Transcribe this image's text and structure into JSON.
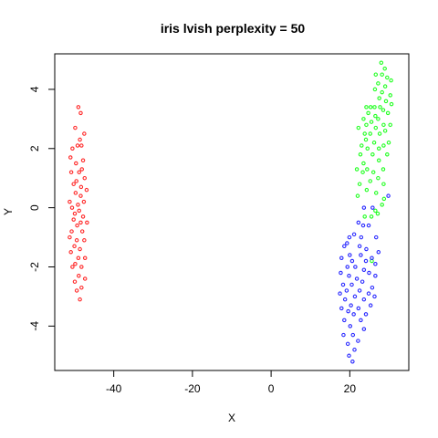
{
  "chart_data": {
    "type": "scatter",
    "title": "iris lvish perplexity = 50",
    "xlabel": "X",
    "ylabel": "Y",
    "xlim": [
      -55,
      35
    ],
    "ylim": [
      -5.5,
      5.2
    ],
    "xticks": [
      -40,
      -20,
      0,
      20
    ],
    "yticks": [
      -4,
      -2,
      0,
      2,
      4
    ],
    "grid": false,
    "series": [
      {
        "color": "#ff2a2a",
        "points": [
          [
            -49.0,
            3.4
          ],
          [
            -48.4,
            3.2
          ],
          [
            -49.8,
            2.7
          ],
          [
            -47.5,
            2.5
          ],
          [
            -48.6,
            2.3
          ],
          [
            -50.5,
            2.0
          ],
          [
            -49.2,
            2.1
          ],
          [
            -48.2,
            2.1
          ],
          [
            -51.0,
            1.7
          ],
          [
            -47.8,
            1.6
          ],
          [
            -49.6,
            1.5
          ],
          [
            -48.1,
            1.3
          ],
          [
            -50.8,
            1.2
          ],
          [
            -48.8,
            1.2
          ],
          [
            -47.4,
            1.0
          ],
          [
            -49.5,
            0.9
          ],
          [
            -50.2,
            0.8
          ],
          [
            -48.3,
            0.7
          ],
          [
            -46.9,
            0.6
          ],
          [
            -49.7,
            0.5
          ],
          [
            -48.4,
            0.4
          ],
          [
            -51.2,
            0.2
          ],
          [
            -47.6,
            0.2
          ],
          [
            -49.1,
            0.1
          ],
          [
            -50.6,
            0.0
          ],
          [
            -48.8,
            -0.1
          ],
          [
            -49.9,
            -0.2
          ],
          [
            -47.8,
            -0.3
          ],
          [
            -50.2,
            -0.4
          ],
          [
            -48.4,
            -0.5
          ],
          [
            -46.8,
            -0.5
          ],
          [
            -49.3,
            -0.6
          ],
          [
            -50.7,
            -0.8
          ],
          [
            -48.0,
            -0.8
          ],
          [
            -51.2,
            -1.0
          ],
          [
            -49.4,
            -1.1
          ],
          [
            -47.5,
            -1.1
          ],
          [
            -50.0,
            -1.3
          ],
          [
            -48.6,
            -1.4
          ],
          [
            -50.9,
            -1.5
          ],
          [
            -49.0,
            -1.7
          ],
          [
            -47.3,
            -1.7
          ],
          [
            -49.8,
            -1.9
          ],
          [
            -48.2,
            -2.0
          ],
          [
            -50.5,
            -2.0
          ],
          [
            -48.9,
            -2.3
          ],
          [
            -47.3,
            -2.4
          ],
          [
            -49.9,
            -2.5
          ],
          [
            -48.2,
            -2.7
          ],
          [
            -49.4,
            -2.8
          ],
          [
            -48.6,
            -3.1
          ]
        ]
      },
      {
        "color": "#22ff22",
        "points": [
          [
            28.0,
            4.9
          ],
          [
            28.9,
            4.7
          ],
          [
            29.5,
            4.4
          ],
          [
            26.6,
            4.5
          ],
          [
            28.2,
            4.5
          ],
          [
            30.5,
            4.3
          ],
          [
            27.2,
            4.2
          ],
          [
            29.0,
            4.1
          ],
          [
            26.4,
            4.0
          ],
          [
            28.2,
            3.9
          ],
          [
            30.3,
            3.8
          ],
          [
            27.5,
            3.7
          ],
          [
            29.2,
            3.6
          ],
          [
            24.2,
            3.4
          ],
          [
            25.3,
            3.4
          ],
          [
            26.3,
            3.4
          ],
          [
            27.7,
            3.4
          ],
          [
            30.6,
            3.5
          ],
          [
            28.5,
            3.3
          ],
          [
            24.7,
            3.2
          ],
          [
            26.5,
            3.1
          ],
          [
            29.7,
            3.2
          ],
          [
            23.5,
            3.0
          ],
          [
            27.2,
            3.0
          ],
          [
            25.5,
            2.9
          ],
          [
            28.6,
            2.8
          ],
          [
            24.2,
            2.8
          ],
          [
            30.3,
            2.8
          ],
          [
            22.2,
            2.7
          ],
          [
            26.6,
            2.7
          ],
          [
            29.0,
            2.6
          ],
          [
            23.8,
            2.5
          ],
          [
            25.2,
            2.5
          ],
          [
            27.6,
            2.5
          ],
          [
            24.1,
            2.3
          ],
          [
            29.9,
            2.2
          ],
          [
            23.0,
            2.1
          ],
          [
            26.2,
            2.2
          ],
          [
            28.6,
            2.1
          ],
          [
            24.5,
            2.0
          ],
          [
            27.4,
            2.0
          ],
          [
            22.7,
            1.8
          ],
          [
            25.8,
            1.8
          ],
          [
            29.5,
            1.8
          ],
          [
            23.5,
            1.5
          ],
          [
            27.4,
            1.6
          ],
          [
            24.4,
            1.3
          ],
          [
            21.8,
            1.3
          ],
          [
            28.5,
            1.3
          ],
          [
            26.0,
            1.2
          ],
          [
            23.3,
            1.2
          ],
          [
            27.2,
            1.0
          ],
          [
            25.2,
            0.9
          ],
          [
            22.5,
            0.8
          ],
          [
            28.6,
            0.8
          ],
          [
            24.3,
            0.6
          ],
          [
            26.7,
            0.5
          ],
          [
            22.0,
            0.4
          ],
          [
            28.2,
            0.1
          ],
          [
            26.5,
            -0.1
          ],
          [
            25.5,
            -0.3
          ],
          [
            27.1,
            -0.2
          ],
          [
            23.8,
            -0.3
          ],
          [
            28.7,
            0.3
          ],
          [
            25.6,
            -1.8
          ]
        ]
      },
      {
        "color": "#2a2aff",
        "points": [
          [
            29.8,
            0.4
          ],
          [
            23.6,
            0.0
          ],
          [
            25.8,
            0.0
          ],
          [
            22.2,
            -0.5
          ],
          [
            24.8,
            -0.6
          ],
          [
            23.4,
            -0.6
          ],
          [
            21.1,
            -0.9
          ],
          [
            22.9,
            -1.0
          ],
          [
            19.9,
            -1.0
          ],
          [
            26.7,
            -1.0
          ],
          [
            19.3,
            -1.2
          ],
          [
            22.5,
            -1.3
          ],
          [
            24.2,
            -1.4
          ],
          [
            18.6,
            -1.3
          ],
          [
            27.3,
            -1.5
          ],
          [
            20.0,
            -1.6
          ],
          [
            22.8,
            -1.6
          ],
          [
            25.6,
            -1.7
          ],
          [
            17.9,
            -1.7
          ],
          [
            20.6,
            -1.8
          ],
          [
            24.1,
            -1.8
          ],
          [
            19.4,
            -2.0
          ],
          [
            26.5,
            -1.9
          ],
          [
            21.4,
            -2.0
          ],
          [
            23.6,
            -2.1
          ],
          [
            17.7,
            -2.2
          ],
          [
            24.9,
            -2.2
          ],
          [
            19.8,
            -2.3
          ],
          [
            26.5,
            -2.3
          ],
          [
            21.8,
            -2.4
          ],
          [
            23.2,
            -2.5
          ],
          [
            18.3,
            -2.6
          ],
          [
            25.7,
            -2.7
          ],
          [
            20.5,
            -2.6
          ],
          [
            19.2,
            -2.8
          ],
          [
            22.5,
            -2.8
          ],
          [
            24.8,
            -2.9
          ],
          [
            17.5,
            -2.9
          ],
          [
            21.3,
            -3.0
          ],
          [
            26.3,
            -3.0
          ],
          [
            18.8,
            -3.1
          ],
          [
            23.6,
            -3.1
          ],
          [
            20.3,
            -3.3
          ],
          [
            25.3,
            -3.3
          ],
          [
            22.2,
            -3.4
          ],
          [
            17.9,
            -3.4
          ],
          [
            19.6,
            -3.5
          ],
          [
            24.1,
            -3.6
          ],
          [
            21.0,
            -3.6
          ],
          [
            18.6,
            -3.8
          ],
          [
            22.8,
            -3.8
          ],
          [
            20.1,
            -4.0
          ],
          [
            23.6,
            -4.1
          ],
          [
            18.4,
            -4.3
          ],
          [
            20.8,
            -4.3
          ],
          [
            22.1,
            -4.5
          ],
          [
            19.5,
            -4.6
          ],
          [
            21.2,
            -4.8
          ],
          [
            19.8,
            -5.0
          ],
          [
            20.7,
            -5.2
          ]
        ]
      }
    ]
  }
}
